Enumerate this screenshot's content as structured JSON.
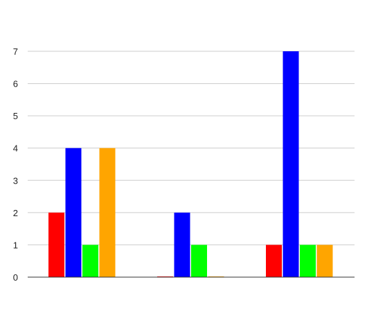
{
  "chart_data": {
    "type": "bar",
    "categories": [
      "",
      "",
      ""
    ],
    "series": [
      {
        "color": "#ff0000",
        "values": [
          2,
          0,
          1
        ]
      },
      {
        "color": "#0000ff",
        "values": [
          4,
          2,
          7
        ]
      },
      {
        "color": "#00ff00",
        "values": [
          1,
          1,
          1
        ]
      },
      {
        "color": "#ffa500",
        "values": [
          4,
          0,
          1
        ]
      }
    ],
    "title": "",
    "xlabel": "",
    "ylabel": "",
    "ylim": [
      0,
      7
    ],
    "yticks": [
      "0",
      "1",
      "2",
      "3",
      "4",
      "5",
      "6",
      "7"
    ],
    "grid": true,
    "legend": "none"
  }
}
